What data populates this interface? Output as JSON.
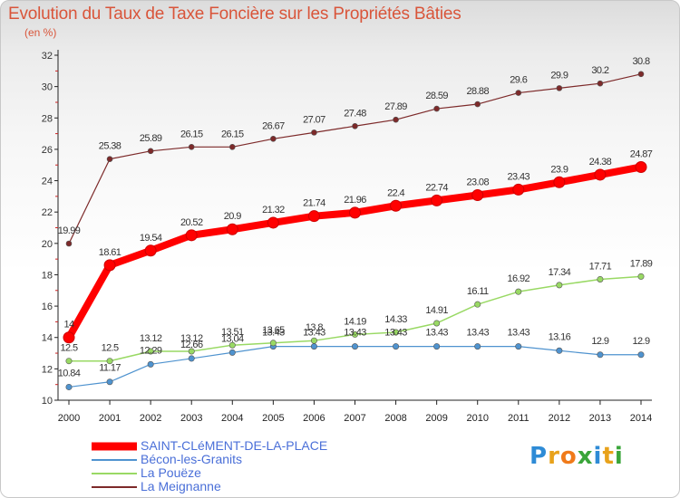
{
  "header": {
    "title": "Evolution du Taux de Taxe Foncière sur les Propriétés Bâties",
    "unit": "(en %)"
  },
  "logo": {
    "text": "Proxiti",
    "letters": [
      "P",
      "r",
      "o",
      "x",
      "i",
      "t",
      "i"
    ],
    "colors": [
      "#2e8bd6",
      "#e8a21b",
      "#f07a1a",
      "#3aa53a",
      "#2e8bd6",
      "#e8a21b",
      "#3aa53a"
    ]
  },
  "chart_data": {
    "type": "line",
    "title": "Evolution du Taux de Taxe Foncière sur les Propriétés Bâties",
    "ylabel": "(en %)",
    "xlabel": "",
    "x": [
      "2000",
      "2001",
      "2002",
      "2003",
      "2004",
      "2005",
      "2006",
      "2007",
      "2008",
      "2009",
      "2010",
      "2011",
      "2012",
      "2013",
      "2014"
    ],
    "ylim": [
      10,
      32
    ],
    "yticks": [
      "10",
      "12",
      "14",
      "16",
      "18",
      "20",
      "22",
      "24",
      "26",
      "28",
      "30",
      "32"
    ],
    "grid": false,
    "legend_position": "bottom",
    "series": [
      {
        "name": "SAINT-CLéMENT-DE-LA-PLACE",
        "color": "#ff0000",
        "values": [
          14,
          18.61,
          19.54,
          20.52,
          20.9,
          21.32,
          21.74,
          21.96,
          22.4,
          22.74,
          23.08,
          23.43,
          23.9,
          24.38,
          24.87
        ],
        "labels": [
          "14",
          "18.61",
          "19.54",
          "20.52",
          "20.9",
          "21.32",
          "21.74",
          "21.96",
          "22.4",
          "22.74",
          "23.08",
          "23.43",
          "23.9",
          "24.38",
          "24.87"
        ]
      },
      {
        "name": "Bécon-les-Granits",
        "color": "#4f93cf",
        "values": [
          10.84,
          11.17,
          12.29,
          12.66,
          13.04,
          13.43,
          13.43,
          13.43,
          13.43,
          13.43,
          13.43,
          13.43,
          13.16,
          12.9,
          12.9
        ],
        "labels": [
          "10.84",
          "11.17",
          "12.29",
          "12.66",
          "13.04",
          "13.43",
          "13.43",
          "13.43",
          "13.43",
          "13.43",
          "13.43",
          "13.43",
          "13.16",
          "12.9",
          "12.9"
        ]
      },
      {
        "name": "La Pouëze",
        "color": "#99d964",
        "values": [
          12.5,
          12.5,
          13.12,
          13.12,
          13.51,
          13.65,
          13.8,
          14.19,
          14.33,
          14.91,
          16.11,
          16.92,
          17.34,
          17.71,
          17.89
        ],
        "labels": [
          "12.5",
          "12.5",
          "13.12",
          "13.12",
          "13.51",
          "13.65",
          "13.8",
          "14.19",
          "14.33",
          "14.91",
          "16.11",
          "16.92",
          "17.34",
          "17.71",
          "17.89"
        ]
      },
      {
        "name": "La Meignanne",
        "color": "#7d2a2a",
        "values": [
          19.99,
          25.38,
          25.89,
          26.15,
          26.15,
          26.67,
          27.07,
          27.48,
          27.89,
          28.59,
          28.88,
          29.6,
          29.9,
          30.2,
          30.8
        ],
        "labels": [
          "19.99",
          "25.38",
          "25.89",
          "26.15",
          "26.15",
          "26.67",
          "27.07",
          "27.48",
          "27.89",
          "28.59",
          "28.88",
          "29.6",
          "29.9",
          "30.2",
          "30.8"
        ]
      }
    ]
  }
}
